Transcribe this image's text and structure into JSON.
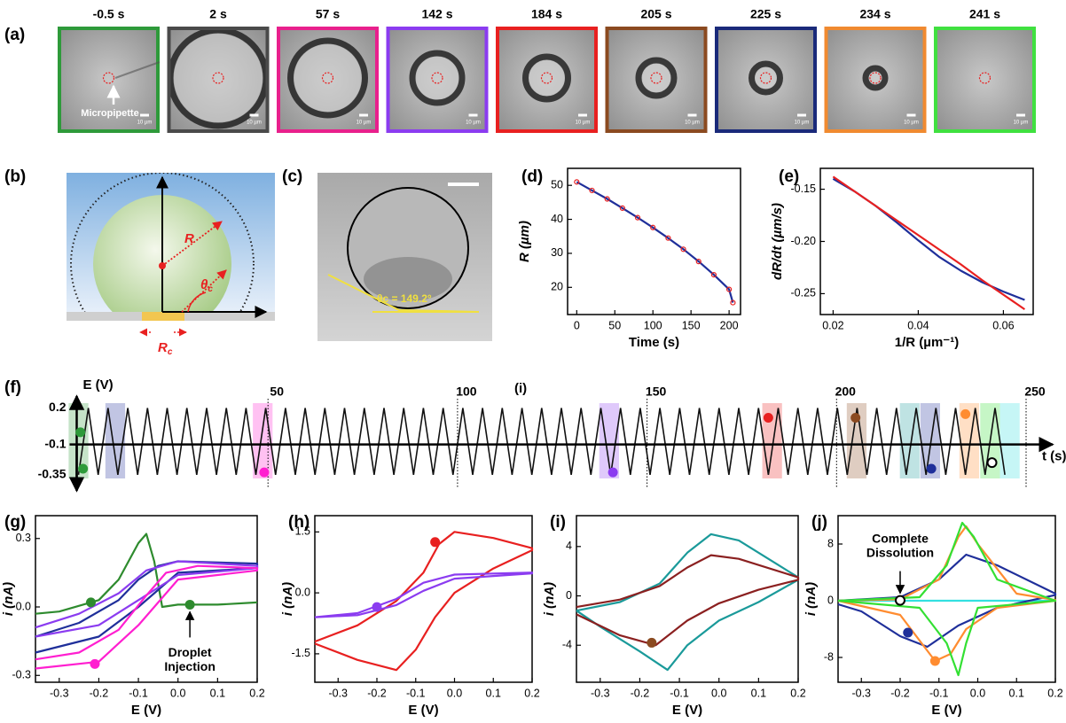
{
  "panels": [
    "(a)",
    "(b)",
    "(c)",
    "(d)",
    "(e)",
    "(f)",
    "(g)",
    "(h)",
    "(i)",
    "(j)"
  ],
  "frames": {
    "times": [
      "-0.5 s",
      "2 s",
      "57 s",
      "142 s",
      "184 s",
      "205 s",
      "225 s",
      "234 s",
      "241 s"
    ],
    "colors": [
      "#2e9a3a",
      "#4a4a4a",
      "#e8208c",
      "#8b3cf0",
      "#e82020",
      "#8b4a20",
      "#1a2a7a",
      "#f08a30",
      "#40e040"
    ],
    "annotation": "Micropipette",
    "scale_bar": "10 µm"
  },
  "schematic": {
    "R": "R",
    "theta": "θ",
    "theta_sub": "c",
    "Rc": "R",
    "Rc_sub": "c"
  },
  "photo": {
    "angle": "θc = 149.2°"
  },
  "chart_data": [
    {
      "type": "line",
      "xlabel": "Time (s)",
      "ylabel": "R (µm)",
      "xlim": [
        -12,
        215
      ],
      "ylim": [
        12,
        55
      ],
      "xticks": [
        0,
        50,
        100,
        150,
        200
      ],
      "yticks": [
        20,
        30,
        40,
        50
      ],
      "series": [
        {
          "color": "#1f2f9a",
          "marker_color": "#e82020",
          "x": [
            0,
            20,
            40,
            60,
            80,
            100,
            120,
            140,
            160,
            180,
            200,
            205
          ],
          "values": [
            51,
            48.5,
            46,
            43.3,
            40.5,
            37.6,
            34.5,
            31.2,
            27.6,
            23.7,
            19.4,
            15.5
          ]
        }
      ]
    },
    {
      "type": "line",
      "xlabel": "1/R (µm⁻¹)",
      "ylabel": "dR/dt (µm/s)",
      "xlim": [
        0.017,
        0.067
      ],
      "ylim": [
        -0.27,
        -0.13
      ],
      "xticks": [
        0.02,
        0.04,
        0.06
      ],
      "yticks": [
        -0.15,
        {
          "value": -0.2,
          "label": "-0.20"
        },
        -0.25
      ],
      "series": [
        {
          "color": "#1f2f9a",
          "x": [
            0.02,
            0.025,
            0.03,
            0.035,
            0.04,
            0.045,
            0.05,
            0.055,
            0.06,
            0.065
          ],
          "values": [
            -0.14,
            -0.152,
            -0.166,
            -0.182,
            -0.199,
            -0.215,
            -0.228,
            -0.239,
            -0.248,
            -0.256
          ]
        },
        {
          "color": "#e82020",
          "x": [
            0.02,
            0.025,
            0.03,
            0.035,
            0.04,
            0.045,
            0.05,
            0.055,
            0.06,
            0.065
          ],
          "values": [
            -0.138,
            -0.152,
            -0.166,
            -0.18,
            -0.194,
            -0.208,
            -0.222,
            -0.237,
            -0.251,
            -0.265
          ]
        }
      ]
    },
    {
      "type": "waveform",
      "ylabel": "E (V)",
      "xlabel": "t (s)",
      "note": "(i)",
      "xlim": [
        0,
        250
      ],
      "ylim": [
        -0.38,
        0.24
      ],
      "xticks": [
        50,
        100,
        150,
        200,
        250
      ],
      "yticks": [
        0.2,
        -0.1,
        -0.35
      ],
      "period": 5.2,
      "t_end": 246,
      "highlights": [
        {
          "t": 0,
          "color": "#2e9a3a"
        },
        {
          "t": 9.7,
          "color": "#1f2f9a"
        },
        {
          "t": 48.6,
          "color": "#ff1fd0"
        },
        {
          "t": 140,
          "color": "#8b3cf0"
        },
        {
          "t": 183,
          "color": "#e82020"
        },
        {
          "t": 205.3,
          "color": "#8b4a20"
        },
        {
          "t": 219.3,
          "color": "#1a9a9a"
        },
        {
          "t": 224.7,
          "color": "#1f2f9a"
        },
        {
          "t": 235,
          "color": "#ff8c30"
        },
        {
          "t": 240.5,
          "color": "#33e033"
        },
        {
          "t": 245.7,
          "color": "#33e0e0"
        }
      ],
      "points": [
        {
          "x": 0.5,
          "y": 0.0,
          "color": "#2e9a3a"
        },
        {
          "x": 1.2,
          "y": -0.3,
          "color": "#2e9a3a"
        },
        {
          "x": 49,
          "y": -0.33,
          "color": "#ff1fd0"
        },
        {
          "x": 141,
          "y": -0.33,
          "color": "#8b3cf0"
        },
        {
          "x": 182,
          "y": 0.12,
          "color": "#e82020"
        },
        {
          "x": 205,
          "y": 0.12,
          "color": "#8b4a20"
        },
        {
          "x": 225,
          "y": -0.3,
          "color": "#1f2f9a"
        },
        {
          "x": 234,
          "y": 0.15,
          "color": "#ff8c30"
        },
        {
          "x": 241,
          "y": -0.25,
          "color": "#33e033",
          "hollow": true
        }
      ]
    },
    {
      "type": "line",
      "xlabel": "E (V)",
      "ylabel": "i (nA)",
      "xlim": [
        -0.36,
        0.2
      ],
      "ylim": [
        -0.33,
        0.4
      ],
      "xticks": [
        -0.3,
        -0.2,
        -0.1,
        {
          "value": 0,
          "label": "0.0"
        },
        0.1,
        0.2
      ],
      "yticks": [
        0.3,
        {
          "value": 0,
          "label": "0.0"
        },
        -0.3
      ],
      "series": [
        {
          "color": "#2e8b2e",
          "x": [
            -0.36,
            -0.3,
            -0.2,
            -0.15,
            -0.1,
            -0.08,
            -0.06,
            -0.04,
            0,
            0.1,
            0.2
          ],
          "values": [
            -0.03,
            -0.02,
            0.03,
            0.12,
            0.28,
            0.32,
            0.2,
            0,
            0.01,
            0.01,
            0.02
          ]
        },
        {
          "color": "#1f2f9a",
          "x": [
            -0.36,
            -0.25,
            -0.15,
            -0.1,
            -0.05,
            0,
            0.2,
            0.2,
            0,
            -0.1,
            -0.2,
            -0.36
          ],
          "values": [
            -0.13,
            -0.07,
            0.03,
            0.12,
            0.18,
            0.2,
            0.19,
            0.17,
            0.15,
            0,
            -0.13,
            -0.2
          ]
        },
        {
          "color": "#8b3cf0",
          "x": [
            -0.36,
            -0.25,
            -0.15,
            -0.08,
            0,
            0.2,
            0.2,
            0,
            -0.1,
            -0.2,
            -0.36
          ],
          "values": [
            -0.09,
            -0.03,
            0.06,
            0.16,
            0.2,
            0.18,
            0.17,
            0.14,
            0.03,
            -0.08,
            -0.13
          ]
        },
        {
          "color": "#ff1fd0",
          "x": [
            -0.36,
            -0.25,
            -0.15,
            -0.08,
            -0.03,
            0.05,
            0.2,
            0.2,
            0,
            -0.1,
            -0.2,
            -0.36
          ],
          "values": [
            -0.23,
            -0.2,
            -0.1,
            0.05,
            0.15,
            0.18,
            0.17,
            0.16,
            0.12,
            -0.08,
            -0.24,
            -0.27
          ]
        }
      ],
      "points": [
        {
          "x": -0.22,
          "y": 0.02,
          "color": "#2e8b2e"
        },
        {
          "x": 0.03,
          "y": 0.01,
          "color": "#2e8b2e"
        },
        {
          "x": -0.21,
          "y": -0.25,
          "color": "#ff1fd0"
        }
      ],
      "annotation": [
        "Droplet",
        "Injection"
      ]
    },
    {
      "type": "line",
      "xlabel": "E (V)",
      "ylabel": "i (nA)",
      "xlim": [
        -0.36,
        0.2
      ],
      "ylim": [
        -2.2,
        1.9
      ],
      "xticks": [
        -0.3,
        -0.2,
        -0.1,
        {
          "value": 0,
          "label": "0.0"
        },
        0.1,
        0.2
      ],
      "yticks": [
        1.5,
        {
          "value": 0,
          "label": "0.0"
        },
        -1.5
      ],
      "series": [
        {
          "color": "#e82020",
          "x": [
            -0.36,
            -0.25,
            -0.15,
            -0.08,
            -0.04,
            0,
            0.1,
            0.2,
            0.2,
            0.1,
            0,
            -0.05,
            -0.1,
            -0.15,
            -0.25,
            -0.36
          ],
          "values": [
            -1.2,
            -0.8,
            -0.2,
            0.5,
            1.2,
            1.5,
            1.35,
            1.1,
            1.05,
            0.6,
            0,
            -0.6,
            -1.4,
            -1.9,
            -1.65,
            -1.25
          ]
        },
        {
          "color": "#8b3cf0",
          "x": [
            -0.36,
            -0.25,
            -0.15,
            -0.08,
            0,
            0.2,
            0.2,
            0,
            -0.08,
            -0.15,
            -0.25,
            -0.36
          ],
          "values": [
            -0.6,
            -0.5,
            -0.15,
            0.25,
            0.45,
            0.5,
            0.48,
            0.35,
            0.05,
            -0.3,
            -0.55,
            -0.6
          ]
        }
      ],
      "points": [
        {
          "x": -0.05,
          "y": 1.25,
          "color": "#e82020"
        },
        {
          "x": -0.2,
          "y": -0.35,
          "color": "#8b3cf0"
        }
      ]
    },
    {
      "type": "line",
      "xlabel": "E (V)",
      "ylabel": "i (nA)",
      "xlim": [
        -0.36,
        0.2
      ],
      "ylim": [
        -7,
        6.5
      ],
      "xticks": [
        -0.3,
        -0.2,
        -0.1,
        {
          "value": 0,
          "label": "0.0"
        },
        0.1,
        0.2
      ],
      "yticks": [
        4,
        0,
        -4
      ],
      "series": [
        {
          "color": "#1a9a9a",
          "x": [
            -0.36,
            -0.25,
            -0.15,
            -0.08,
            -0.02,
            0.05,
            0.2,
            0.2,
            0.1,
            0,
            -0.08,
            -0.13,
            -0.2,
            -0.3,
            -0.36
          ],
          "values": [
            -1.2,
            -0.5,
            1,
            3.5,
            5,
            4.5,
            1.5,
            1.3,
            -0.5,
            -2,
            -4,
            -6,
            -4.5,
            -2.5,
            -1.2
          ]
        },
        {
          "color": "#8b2020",
          "x": [
            -0.36,
            -0.25,
            -0.15,
            -0.08,
            -0.02,
            0.05,
            0.2,
            0.2,
            0.1,
            0,
            -0.08,
            -0.16,
            -0.25,
            -0.36
          ],
          "values": [
            -0.9,
            -0.3,
            0.8,
            2.3,
            3.3,
            3,
            1.5,
            1.3,
            0.5,
            -0.6,
            -2,
            -4,
            -3.2,
            -1.5
          ]
        }
      ],
      "points": [
        {
          "x": -0.17,
          "y": -3.8,
          "color": "#8b4a20"
        }
      ]
    },
    {
      "type": "line",
      "xlabel": "E (V)",
      "ylabel": "i (nA)",
      "xlim": [
        -0.36,
        0.2
      ],
      "ylim": [
        -11.5,
        12
      ],
      "xticks": [
        -0.3,
        -0.2,
        -0.1,
        {
          "value": 0,
          "label": "0.0"
        },
        0.1,
        0.2
      ],
      "yticks": [
        8,
        0,
        -8
      ],
      "series": [
        {
          "color": "#33e0e0",
          "x": [
            -0.36,
            0.2
          ],
          "values": [
            0,
            0
          ]
        },
        {
          "color": "#1f2f9a",
          "x": [
            -0.36,
            -0.2,
            -0.1,
            -0.03,
            0.05,
            0.2,
            0.2,
            0.05,
            -0.05,
            -0.13,
            -0.2,
            -0.3,
            -0.36
          ],
          "values": [
            0,
            0.5,
            3,
            6.5,
            5,
            1,
            0.8,
            -1,
            -3.5,
            -6.5,
            -5,
            -1.5,
            -0.5
          ]
        },
        {
          "color": "#ff8c30",
          "x": [
            -0.36,
            -0.2,
            -0.1,
            -0.05,
            -0.03,
            0,
            0.1,
            0.2,
            0.2,
            0.05,
            -0.03,
            -0.07,
            -0.11,
            -0.2,
            -0.36
          ],
          "values": [
            0,
            0.2,
            3,
            9,
            10.5,
            8,
            1,
            0.1,
            0,
            -1,
            -4,
            -7.5,
            -8.5,
            -2,
            0
          ]
        },
        {
          "color": "#33e033",
          "x": [
            -0.36,
            -0.15,
            -0.08,
            -0.04,
            -0.01,
            0.05,
            0.2,
            0.2,
            0,
            -0.03,
            -0.05,
            -0.08,
            -0.15,
            -0.36
          ],
          "values": [
            0,
            0.5,
            5,
            11,
            9,
            3,
            0,
            0,
            -1,
            -6,
            -10.5,
            -6,
            -1,
            0
          ]
        }
      ],
      "points": [
        {
          "x": -0.18,
          "y": -4.5,
          "color": "#1f2f9a"
        },
        {
          "x": -0.11,
          "y": -8.5,
          "color": "#ff8c30"
        },
        {
          "x": -0.2,
          "y": 0.05,
          "color": "#33e033",
          "hollow": true
        }
      ],
      "annotation": [
        "Complete",
        "Dissolution"
      ]
    }
  ]
}
